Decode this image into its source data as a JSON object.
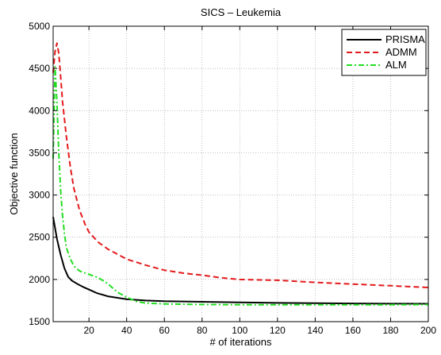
{
  "chart_data": {
    "type": "line",
    "title": "SICS – Leukemia",
    "xlabel": "# of iterations",
    "ylabel": "Objective function",
    "xlim": [
      1,
      200
    ],
    "ylim": [
      1500,
      5000
    ],
    "xticks": [
      20,
      40,
      60,
      80,
      100,
      120,
      140,
      160,
      180,
      200
    ],
    "yticks": [
      1500,
      2000,
      2500,
      3000,
      3500,
      4000,
      4500,
      5000
    ],
    "grid": true,
    "legend_position": "top-right",
    "series": [
      {
        "name": "PRISMA",
        "color": "#000000",
        "dash": "solid",
        "points": [
          [
            1,
            2740
          ],
          [
            3,
            2480
          ],
          [
            5,
            2290
          ],
          [
            7,
            2130
          ],
          [
            9,
            2030
          ],
          [
            11,
            1985
          ],
          [
            14,
            1945
          ],
          [
            17,
            1910
          ],
          [
            20,
            1880
          ],
          [
            24,
            1840
          ],
          [
            30,
            1800
          ],
          [
            40,
            1765
          ],
          [
            50,
            1750
          ],
          [
            60,
            1742
          ],
          [
            80,
            1735
          ],
          [
            100,
            1728
          ],
          [
            120,
            1722
          ],
          [
            140,
            1718
          ],
          [
            160,
            1715
          ],
          [
            180,
            1713
          ],
          [
            200,
            1712
          ]
        ]
      },
      {
        "name": "ADMM",
        "color": "#e31a1c",
        "dash": "dashed",
        "points": [
          [
            1,
            4450
          ],
          [
            2,
            4700
          ],
          [
            3,
            4800
          ],
          [
            4,
            4680
          ],
          [
            5,
            4400
          ],
          [
            6,
            4100
          ],
          [
            8,
            3700
          ],
          [
            10,
            3350
          ],
          [
            12,
            3080
          ],
          [
            15,
            2820
          ],
          [
            18,
            2650
          ],
          [
            20,
            2560
          ],
          [
            25,
            2440
          ],
          [
            30,
            2360
          ],
          [
            40,
            2240
          ],
          [
            50,
            2170
          ],
          [
            60,
            2110
          ],
          [
            70,
            2075
          ],
          [
            80,
            2050
          ],
          [
            90,
            2020
          ],
          [
            100,
            2000
          ],
          [
            120,
            1990
          ],
          [
            140,
            1965
          ],
          [
            160,
            1945
          ],
          [
            180,
            1925
          ],
          [
            200,
            1905
          ]
        ]
      },
      {
        "name": "ALM",
        "color": "#22dd22",
        "dash": "dashdot",
        "points": [
          [
            1,
            3430
          ],
          [
            2,
            4520
          ],
          [
            3,
            4100
          ],
          [
            4,
            3500
          ],
          [
            5,
            3050
          ],
          [
            6,
            2750
          ],
          [
            7,
            2540
          ],
          [
            8,
            2380
          ],
          [
            10,
            2250
          ],
          [
            12,
            2160
          ],
          [
            15,
            2100
          ],
          [
            20,
            2060
          ],
          [
            25,
            2020
          ],
          [
            30,
            1950
          ],
          [
            35,
            1850
          ],
          [
            40,
            1790
          ],
          [
            45,
            1740
          ],
          [
            50,
            1720
          ],
          [
            60,
            1710
          ],
          [
            80,
            1703
          ],
          [
            100,
            1700
          ],
          [
            120,
            1700
          ],
          [
            140,
            1700
          ],
          [
            160,
            1700
          ],
          [
            180,
            1700
          ],
          [
            200,
            1702
          ]
        ]
      }
    ]
  }
}
